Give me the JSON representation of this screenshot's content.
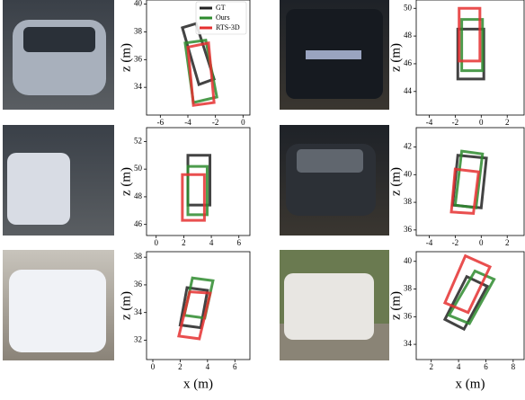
{
  "chart_data": [
    {
      "type": "line",
      "ylabel": "z (m)",
      "xlim": [
        -7.0,
        0.5
      ],
      "ylim": [
        32.0,
        40.3
      ],
      "xticks": [
        -6,
        -4,
        -2,
        0
      ],
      "yticks": [
        34,
        36,
        38,
        40
      ],
      "legend": "upper right",
      "series": [
        {
          "name": "GT",
          "color": "#222222",
          "x": [
            -4.4,
            -3.4,
            -2.1,
            -3.2
          ],
          "values": [
            38.3,
            38.6,
            34.6,
            34.2
          ]
        },
        {
          "name": "Ours",
          "color": "#2e8b2e",
          "x": [
            -4.2,
            -2.7,
            -1.9,
            -3.6
          ],
          "values": [
            37.2,
            37.4,
            33.3,
            32.9
          ]
        },
        {
          "name": "RTS-3D",
          "color": "#e53030",
          "x": [
            -4.0,
            -2.5,
            -2.1,
            -3.6
          ],
          "values": [
            36.9,
            37.2,
            32.9,
            32.7
          ]
        }
      ]
    },
    {
      "type": "line",
      "ylabel": "z (m)",
      "xlim": [
        -5.0,
        3.3
      ],
      "ylim": [
        42.3,
        50.6
      ],
      "xticks": [
        -4,
        -2,
        0,
        2
      ],
      "yticks": [
        44,
        46,
        48,
        50
      ],
      "series": [
        {
          "color": "#222222",
          "x": [
            -1.8,
            0.2,
            0.2,
            -1.8
          ],
          "values": [
            48.5,
            48.5,
            44.9,
            44.9
          ]
        },
        {
          "color": "#2e8b2e",
          "x": [
            -1.5,
            0.1,
            0.1,
            -1.5
          ],
          "values": [
            49.2,
            49.2,
            45.5,
            45.5
          ]
        },
        {
          "color": "#e53030",
          "x": [
            -1.7,
            -0.1,
            -0.1,
            -1.7
          ],
          "values": [
            50.0,
            50.0,
            46.2,
            46.2
          ]
        }
      ]
    },
    {
      "type": "line",
      "ylabel": "z (m)",
      "xlim": [
        -0.7,
        6.8
      ],
      "ylim": [
        45.2,
        53.0
      ],
      "xticks": [
        0,
        2,
        4,
        6
      ],
      "yticks": [
        46,
        48,
        50,
        52
      ],
      "series": [
        {
          "color": "#222222",
          "x": [
            2.3,
            3.9,
            3.9,
            2.3
          ],
          "values": [
            51.0,
            51.0,
            47.4,
            47.4
          ]
        },
        {
          "color": "#2e8b2e",
          "x": [
            2.3,
            3.7,
            3.7,
            2.3
          ],
          "values": [
            50.2,
            50.2,
            46.7,
            46.7
          ]
        },
        {
          "color": "#e53030",
          "x": [
            1.9,
            3.5,
            3.5,
            1.9
          ],
          "values": [
            49.6,
            49.6,
            46.3,
            46.3
          ]
        }
      ]
    },
    {
      "type": "line",
      "ylabel": "z (m)",
      "xlim": [
        -5.0,
        3.3
      ],
      "ylim": [
        35.6,
        43.4
      ],
      "xticks": [
        -4,
        -2,
        0,
        2
      ],
      "yticks": [
        36,
        38,
        40,
        42
      ],
      "series": [
        {
          "color": "#222222",
          "x": [
            -1.8,
            0.4,
            0.0,
            -2.2
          ],
          "values": [
            41.4,
            41.2,
            37.6,
            37.8
          ]
        },
        {
          "color": "#2e8b2e",
          "x": [
            -1.5,
            0.1,
            -0.4,
            -2.0
          ],
          "values": [
            41.7,
            41.5,
            37.6,
            37.8
          ]
        },
        {
          "color": "#e53030",
          "x": [
            -2.0,
            -0.2,
            -0.6,
            -2.3
          ],
          "values": [
            40.4,
            40.2,
            37.2,
            37.3
          ]
        }
      ]
    },
    {
      "type": "line",
      "ylabel": "z (m)",
      "xlabel": "x (m)",
      "xlim": [
        -0.46,
        7.1
      ],
      "ylim": [
        30.6,
        38.4
      ],
      "xticks": [
        0,
        2,
        4,
        6
      ],
      "yticks": [
        32,
        34,
        36,
        38
      ],
      "series": [
        {
          "color": "#222222",
          "x": [
            2.5,
            4.0,
            3.5,
            2.0
          ],
          "values": [
            35.8,
            35.6,
            32.9,
            33.1
          ]
        },
        {
          "color": "#2e8b2e",
          "x": [
            2.9,
            4.4,
            3.8,
            2.3
          ],
          "values": [
            36.5,
            36.3,
            33.6,
            33.8
          ]
        },
        {
          "color": "#e53030",
          "x": [
            2.7,
            4.2,
            3.4,
            1.9
          ],
          "values": [
            35.5,
            35.4,
            32.1,
            32.3
          ]
        }
      ]
    },
    {
      "type": "line",
      "ylabel": "z (m)",
      "xlabel": "x (m)",
      "xlim": [
        0.9,
        8.8
      ],
      "ylim": [
        32.9,
        40.7
      ],
      "xticks": [
        2,
        4,
        6,
        8
      ],
      "yticks": [
        34,
        36,
        38,
        40
      ],
      "series": [
        {
          "color": "#222222",
          "x": [
            4.6,
            6.1,
            4.4,
            3.0
          ],
          "values": [
            38.9,
            38.2,
            35.1,
            35.8
          ]
        },
        {
          "color": "#2e8b2e",
          "x": [
            5.2,
            6.6,
            4.8,
            3.3
          ],
          "values": [
            39.3,
            38.7,
            35.5,
            36.1
          ]
        },
        {
          "color": "#e53030",
          "x": [
            4.5,
            6.3,
            4.7,
            3.0
          ],
          "values": [
            40.4,
            39.6,
            36.3,
            37.0
          ]
        }
      ]
    }
  ]
}
